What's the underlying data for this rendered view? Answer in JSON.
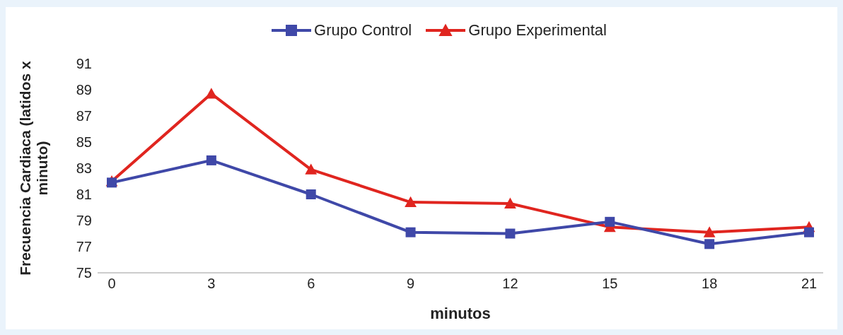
{
  "chart_data": {
    "type": "line",
    "xlabel": "minutos",
    "ylabel": "Frecuencia Cardiaca (latidos x minuto)",
    "categories": [
      "0",
      "3",
      "6",
      "9",
      "12",
      "15",
      "18",
      "21"
    ],
    "series": [
      {
        "name": "Grupo Control",
        "color": "#3f48a8",
        "marker": "square",
        "values": [
          81.9,
          83.6,
          81.0,
          78.1,
          78.0,
          78.9,
          77.2,
          78.1
        ]
      },
      {
        "name": "Grupo Experimental",
        "color": "#e0251f",
        "marker": "triangle",
        "values": [
          82.0,
          88.7,
          82.9,
          80.4,
          80.3,
          78.5,
          78.1,
          78.5
        ]
      }
    ],
    "ylim": [
      75,
      91
    ],
    "yticks": [
      75,
      77,
      79,
      81,
      83,
      85,
      87,
      89,
      91
    ],
    "grid": false,
    "legend": "top",
    "line_style": "solid"
  }
}
